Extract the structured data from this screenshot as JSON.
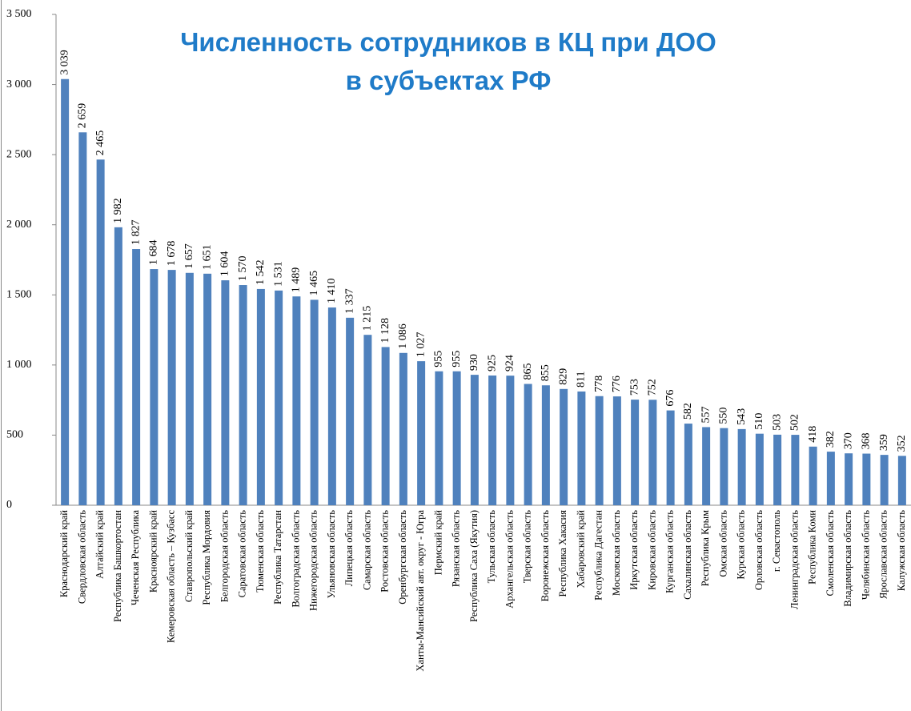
{
  "chart_data": {
    "type": "bar",
    "title": [
      "Численность сотрудников в КЦ при ДОО",
      "в субъектах РФ"
    ],
    "categories": [
      "Краснодарский край",
      "Свердловская область",
      "Алтайский край",
      "Республика Башкортостан",
      "Чеченская Республика",
      "Красноярский край",
      "Кемеровская область – Кузбасс",
      "Ставропольский край",
      "Республика Мордовия",
      "Белгородская область",
      "Саратовская область",
      "Тюменская область",
      "Республика Татарстан",
      "Волгоградская область",
      "Нижегородская область",
      "Ульяновская область",
      "Липецкая область",
      "Самарская область",
      "Ростовская область",
      "Оренбургская область",
      "Ханты-Мансийский авт. округ - Югра",
      "Пермский край",
      "Рязанская область",
      "Республика Саха (Якутия)",
      "Тульская область",
      "Архангельская область",
      "Тверская область",
      "Воронежская область",
      "Республика Хакасия",
      "Хабаровский край",
      "Республика Дагестан",
      "Московская область",
      "Иркутская область",
      "Кировская область",
      "Курганская область",
      "Сахалинская область",
      "Республика Крым",
      "Омская область",
      "Курская область",
      "Орловская область",
      "г. Севастополь",
      "Ленинградская область",
      "Республика Коми",
      "Смоленская область",
      "Владимирская область",
      "Челябинская область",
      "Ярославская область",
      "Калужская область"
    ],
    "values": [
      3039,
      2659,
      2465,
      1982,
      1827,
      1684,
      1678,
      1657,
      1651,
      1604,
      1570,
      1542,
      1531,
      1489,
      1465,
      1410,
      1337,
      1215,
      1128,
      1086,
      1027,
      955,
      955,
      930,
      925,
      924,
      865,
      855,
      829,
      811,
      778,
      776,
      753,
      752,
      676,
      582,
      557,
      550,
      543,
      510,
      503,
      502,
      418,
      382,
      370,
      368,
      359,
      352
    ],
    "value_labels": [
      "3 039",
      "2 659",
      "2 465",
      "1 982",
      "1 827",
      "1 684",
      "1 678",
      "1 657",
      "1 651",
      "1 604",
      "1 570",
      "1 542",
      "1 531",
      "1 489",
      "1 465",
      "1 410",
      "1 337",
      "1 215",
      "1 128",
      "1 086",
      "1 027",
      "955",
      "955",
      "930",
      "925",
      "924",
      "865",
      "855",
      "829",
      "811",
      "778",
      "776",
      "753",
      "752",
      "676",
      "582",
      "557",
      "550",
      "543",
      "510",
      "503",
      "502",
      "418",
      "382",
      "370",
      "368",
      "359",
      "352"
    ],
    "color": "#4f81bd",
    "ylim": [
      0,
      3500
    ],
    "yticks": [
      0,
      500,
      {
        "value": 1000,
        "label": "1 000"
      },
      {
        "value": 1500,
        "label": "1 500"
      },
      {
        "value": 2000,
        "label": "2 000"
      },
      {
        "value": 2500,
        "label": "2 500"
      },
      {
        "value": 3000,
        "label": "3 000"
      },
      {
        "value": 3500,
        "label": "3 500"
      }
    ],
    "grid": false
  }
}
